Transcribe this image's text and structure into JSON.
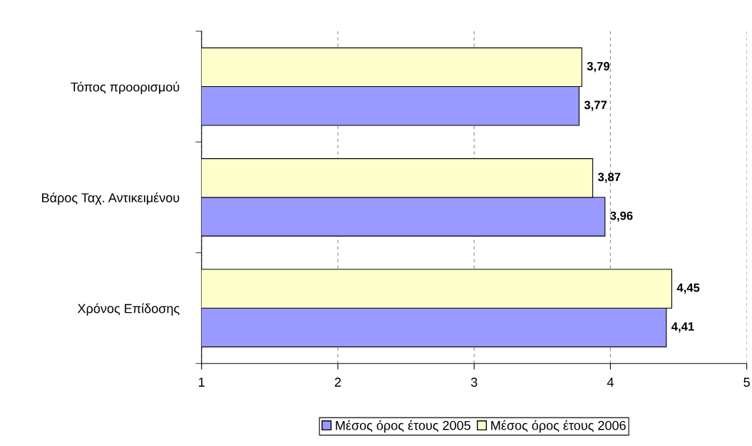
{
  "chart_data": {
    "type": "bar",
    "orientation": "horizontal",
    "categories": [
      "Τόπος προορισμού",
      "Βάρος Ταχ. Αντικειμένου",
      "Χρόνος Επίδοσης"
    ],
    "series": [
      {
        "name": "Μέσος όρος έτους 2005",
        "color": "#9999ff",
        "values": [
          3.77,
          3.96,
          4.41
        ],
        "value_labels": [
          "3,77",
          "3,96",
          "4,41"
        ]
      },
      {
        "name": "Μέσος όρος έτους 2006",
        "color": "#ffffcc",
        "values": [
          3.79,
          3.87,
          4.45
        ],
        "value_labels": [
          "3,79",
          "3,87",
          "4,45"
        ]
      }
    ],
    "xlim": [
      1,
      5
    ],
    "xticks": [
      1,
      2,
      3,
      4,
      5
    ],
    "grid": "x",
    "legend": "bottom"
  }
}
